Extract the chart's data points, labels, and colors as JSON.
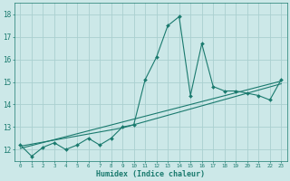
{
  "x": [
    0,
    1,
    2,
    3,
    4,
    5,
    6,
    7,
    8,
    9,
    10,
    11,
    12,
    13,
    14,
    15,
    16,
    17,
    18,
    19,
    20,
    21,
    22,
    23
  ],
  "y_main": [
    12.2,
    11.7,
    12.1,
    12.3,
    12.0,
    12.2,
    12.5,
    12.2,
    12.5,
    13.0,
    13.1,
    15.1,
    16.1,
    17.5,
    17.9,
    14.4,
    16.7,
    14.8,
    14.6,
    14.6,
    14.5,
    14.4,
    14.2,
    15.1
  ],
  "y_trend1": [
    12.05,
    12.18,
    12.31,
    12.44,
    12.57,
    12.7,
    12.83,
    12.96,
    13.09,
    13.22,
    13.35,
    13.48,
    13.61,
    13.74,
    13.87,
    14.0,
    14.13,
    14.26,
    14.39,
    14.52,
    14.65,
    14.78,
    14.91,
    15.04
  ],
  "y_trend2": [
    12.15,
    12.24,
    12.33,
    12.42,
    12.51,
    12.6,
    12.69,
    12.78,
    12.87,
    12.96,
    13.1,
    13.24,
    13.38,
    13.52,
    13.66,
    13.8,
    13.94,
    14.08,
    14.22,
    14.36,
    14.5,
    14.64,
    14.78,
    14.92
  ],
  "line_color": "#1a7a6e",
  "bg_color": "#cce8e8",
  "grid_color": "#aad0d0",
  "xlabel": "Humidex (Indice chaleur)",
  "ylim": [
    11.5,
    18.5
  ],
  "xlim": [
    -0.5,
    23.5
  ],
  "yticks": [
    12,
    13,
    14,
    15,
    16,
    17,
    18
  ],
  "xticks": [
    0,
    1,
    2,
    3,
    4,
    5,
    6,
    7,
    8,
    9,
    10,
    11,
    12,
    13,
    14,
    15,
    16,
    17,
    18,
    19,
    20,
    21,
    22,
    23
  ]
}
